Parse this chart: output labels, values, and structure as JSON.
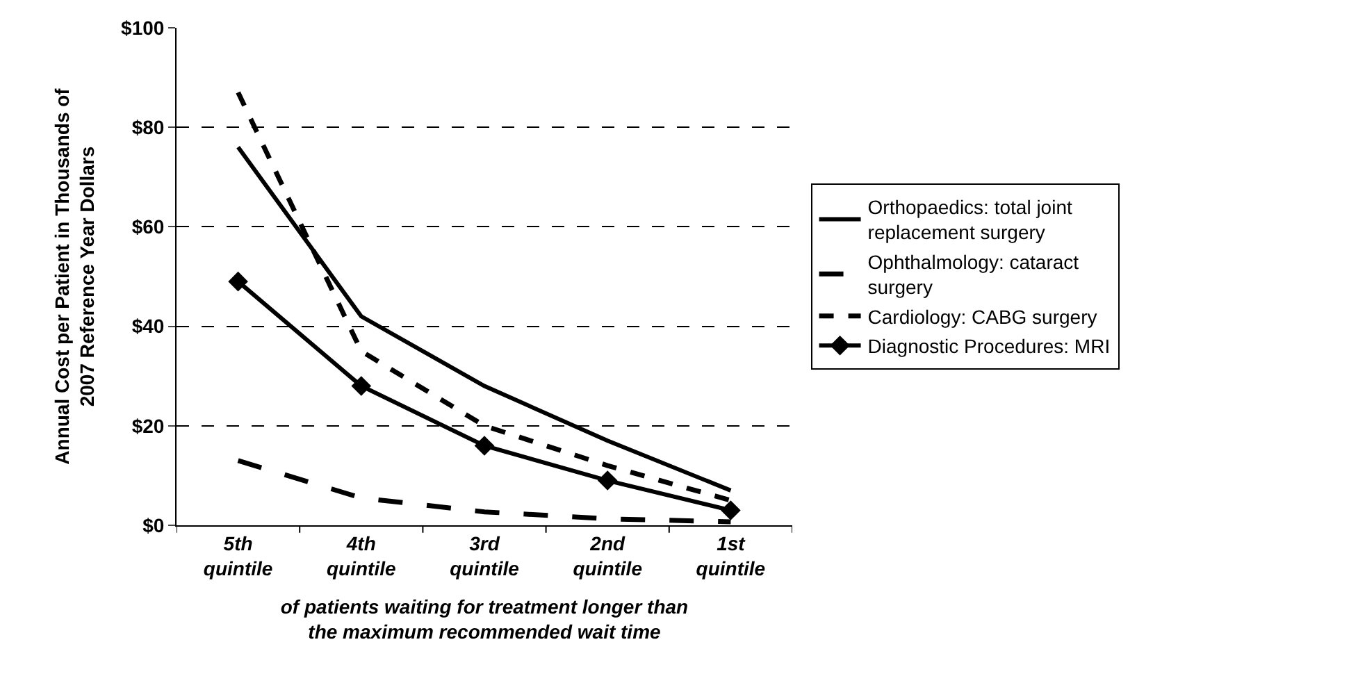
{
  "chart_data": {
    "type": "line",
    "categories": [
      "5th quintile",
      "4th quintile",
      "3rd quintile",
      "2nd quintile",
      "1st quintile"
    ],
    "xlabel": "of patients waiting for treatment longer than the maximum recommended wait time",
    "ylabel": "Annual Cost per Patient in Thousands of 2007 Reference Year Dollars",
    "ylim": [
      0,
      100
    ],
    "yticks": [
      {
        "value": 0,
        "label": "$0"
      },
      {
        "value": 20,
        "label": "$20"
      },
      {
        "value": 40,
        "label": "$40"
      },
      {
        "value": 60,
        "label": "$60"
      },
      {
        "value": 80,
        "label": "$80"
      },
      {
        "value": 100,
        "label": "$100"
      }
    ],
    "grid": "y",
    "legend": "right",
    "series": [
      {
        "name": "Orthopaedics: total joint replacement surgery",
        "color": "#000000",
        "line_style": "solid",
        "marker": "none",
        "values": [
          76,
          42,
          28,
          17,
          7
        ]
      },
      {
        "name": "Ophthalmology: cataract surgery",
        "color": "#000000",
        "line_style": "dashed",
        "marker": "none",
        "values": [
          13,
          5.5,
          2.7,
          1.3,
          0.7
        ]
      },
      {
        "name": "Cardiology: CABG surgery",
        "color": "#000000",
        "line_style": "dotted",
        "marker": "none",
        "values": [
          87,
          35,
          20,
          12,
          5
        ]
      },
      {
        "name": "Diagnostic Procedures: MRI",
        "color": "#000000",
        "line_style": "solid",
        "marker": "diamond",
        "values": [
          49,
          28,
          16,
          9,
          3
        ]
      }
    ]
  }
}
